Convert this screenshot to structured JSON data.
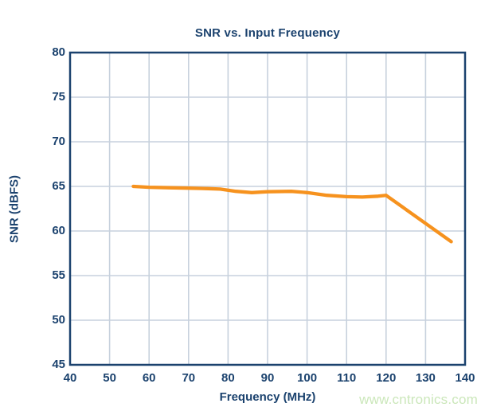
{
  "figure": {
    "watermark": "www.cntronics.com"
  },
  "colors": {
    "axis_and_text": "#1B426E",
    "gridline": "#C7D1DD",
    "series_line": "#F6921E",
    "watermark": "#CBE7BA",
    "background": "#FFFFFF"
  },
  "chart_data": {
    "type": "line",
    "title": "SNR vs. Input Frequency",
    "xlabel": "Frequency (MHz)",
    "ylabel": "SNR (dBFS)",
    "xlim": [
      40,
      140
    ],
    "ylim": [
      45,
      80
    ],
    "x_ticks": [
      40,
      50,
      60,
      70,
      80,
      90,
      100,
      110,
      120,
      130,
      140
    ],
    "y_ticks": [
      45,
      50,
      55,
      60,
      65,
      70,
      75,
      80
    ],
    "grid": true,
    "legend": "none",
    "series": [
      {
        "name": "SNR",
        "color": "#F6921E",
        "points": [
          [
            56,
            65.0
          ],
          [
            60,
            64.9
          ],
          [
            65,
            64.85
          ],
          [
            70,
            64.8
          ],
          [
            75,
            64.75
          ],
          [
            78,
            64.7
          ],
          [
            82,
            64.45
          ],
          [
            86,
            64.3
          ],
          [
            90,
            64.4
          ],
          [
            96,
            64.45
          ],
          [
            100,
            64.3
          ],
          [
            105,
            64.0
          ],
          [
            110,
            63.85
          ],
          [
            114,
            63.8
          ],
          [
            118,
            63.9
          ],
          [
            120,
            64.0
          ],
          [
            136.5,
            58.8
          ]
        ]
      }
    ]
  }
}
